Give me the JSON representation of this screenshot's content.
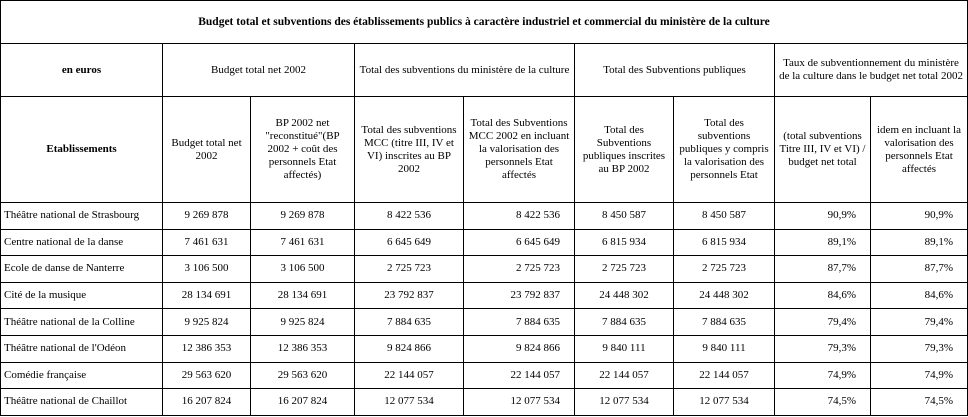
{
  "table": {
    "title": "Budget total et subventions des établissements publics à caractère industriel et commercial du ministère de la culture",
    "group_headers": [
      "en euros",
      "Budget total net 2002",
      "Total des subventions du ministère de la culture",
      "Total des Subventions publiques",
      "Taux de subventionnement du ministère de la culture  dans le budget net total 2002"
    ],
    "column_headers": [
      "Etablissements",
      "Budget total net 2002",
      "BP 2002 net \"reconstitué\"(BP 2002 + coût des personnels Etat affectés)",
      "Total des subventions MCC (titre III, IV et VI) inscrites au  BP 2002",
      "Total des Subventions MCC 2002 en incluant la valorisation des personnels Etat affectés",
      "Total des Subventions publiques inscrites au BP 2002",
      "Total des subventions publiques y compris la valorisation des personnels Etat",
      "(total subventions Titre III, IV et VI) / budget net total",
      "idem en incluant la valorisation des personnels Etat affectés"
    ],
    "rows": [
      [
        "Théâtre national de Strasbourg",
        "9 269 878",
        "9 269 878",
        "8 422 536",
        "8 422 536",
        "8 450 587",
        "8 450 587",
        "90,9%",
        "90,9%"
      ],
      [
        "Centre national de la danse",
        "7 461 631",
        "7 461 631",
        "6 645 649",
        "6 645 649",
        "6 815 934",
        "6 815 934",
        "89,1%",
        "89,1%"
      ],
      [
        "Ecole de danse de Nanterre",
        "3 106 500",
        "3 106 500",
        "2 725 723",
        "2 725 723",
        "2 725 723",
        "2 725 723",
        "87,7%",
        "87,7%"
      ],
      [
        "Cité de la musique",
        "28 134 691",
        "28 134 691",
        "23 792 837",
        "23 792 837",
        "24 448 302",
        "24 448 302",
        "84,6%",
        "84,6%"
      ],
      [
        "Théâtre national de la Colline",
        "9 925 824",
        "9 925 824",
        "7 884 635",
        "7 884 635",
        "7 884 635",
        "7 884 635",
        "79,4%",
        "79,4%"
      ],
      [
        "Théâtre national de l'Odéon",
        "12 386 353",
        "12 386 353",
        "9 824 866",
        "9 824 866",
        "9 840 111",
        "9 840 111",
        "79,3%",
        "79,3%"
      ],
      [
        "Comédie française",
        "29 563 620",
        "29 563 620",
        "22 144 057",
        "22 144 057",
        "22 144 057",
        "22 144 057",
        "74,9%",
        "74,9%"
      ],
      [
        "Théâtre national de Chaillot",
        "16 207 824",
        "16 207 824",
        "12 077 534",
        "12 077 534",
        "12 077 534",
        "12 077 534",
        "74,5%",
        "74,5%"
      ]
    ]
  }
}
